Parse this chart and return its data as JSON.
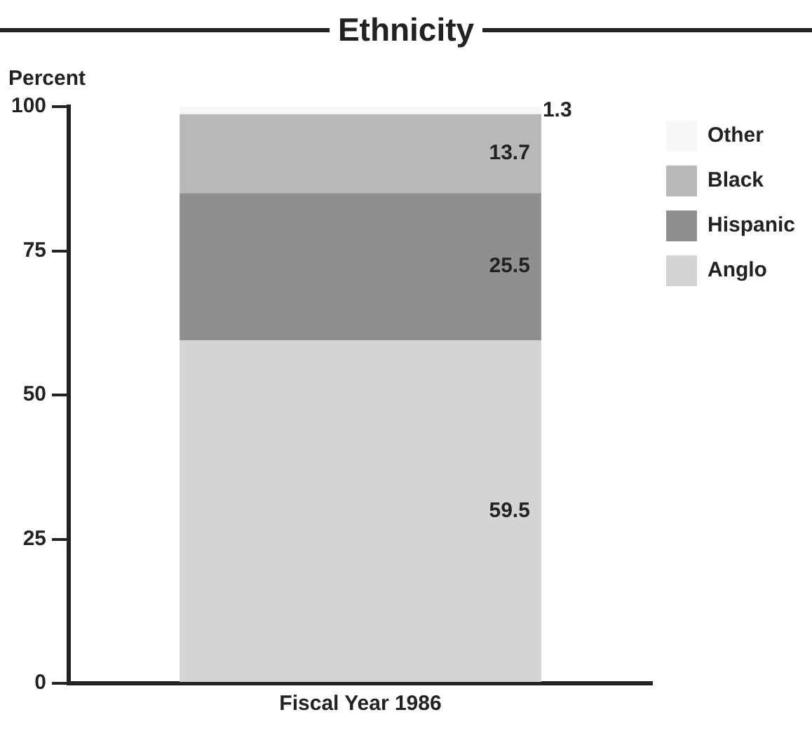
{
  "chart_data": {
    "type": "bar",
    "title": "Ethnicity",
    "ylabel": "Percent",
    "categories": [
      "Fiscal Year 1986"
    ],
    "stacked": true,
    "ylim": [
      0,
      100
    ],
    "yticks": [
      0,
      25,
      50,
      75,
      100
    ],
    "grid": false,
    "legend": "top right",
    "data_labels": true,
    "series": [
      {
        "name": "Anglo",
        "color": "#d4d4d4",
        "values": [
          59.5
        ]
      },
      {
        "name": "Hispanic",
        "color": "#8f8f8f",
        "values": [
          25.5
        ]
      },
      {
        "name": "Black",
        "color": "#b8b8b8",
        "values": [
          13.7
        ]
      },
      {
        "name": "Other",
        "color": "#f7f7f7",
        "values": [
          1.3
        ]
      }
    ]
  }
}
